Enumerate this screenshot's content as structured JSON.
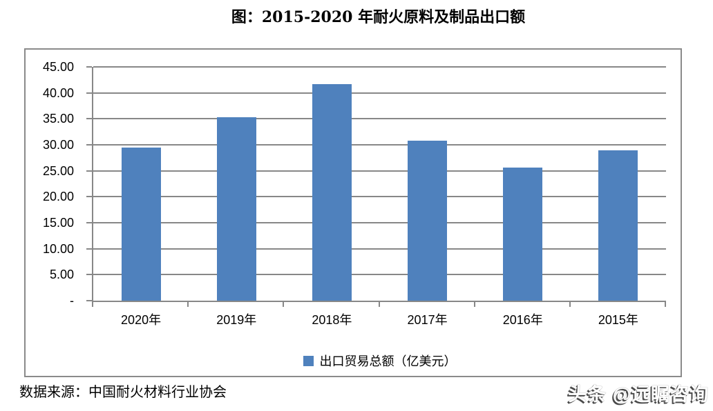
{
  "title": "图：2015-2020 年耐火原料及制品出口额",
  "source": "数据来源：中国耐火材料行业协会",
  "watermark": "头条 @远瞩咨询",
  "legend": {
    "label": "出口贸易总额（亿美元）"
  },
  "colors": {
    "bar": "#4F81BD",
    "grid": "#878787",
    "frame_border": "#8a8a8a",
    "text": "#000000"
  },
  "chart_data": {
    "type": "bar",
    "title": "图：2015-2020 年耐火原料及制品出口额",
    "categories": [
      "2020年",
      "2019年",
      "2018年",
      "2017年",
      "2016年",
      "2015年"
    ],
    "series": [
      {
        "name": "出口贸易总额（亿美元）",
        "values": [
          29.5,
          35.3,
          41.7,
          30.8,
          25.6,
          29.0
        ]
      }
    ],
    "xlabel": "",
    "ylabel": "",
    "ylim": [
      0,
      45
    ],
    "ytick_step": 5,
    "ytick_labels": [
      "-",
      "5.00",
      "10.00",
      "15.00",
      "20.00",
      "25.00",
      "30.00",
      "35.00",
      "40.00",
      "45.00"
    ],
    "grid": true,
    "gridlines": "horizontal",
    "legend_position": "bottom",
    "bar_color": "#4F81BD"
  }
}
